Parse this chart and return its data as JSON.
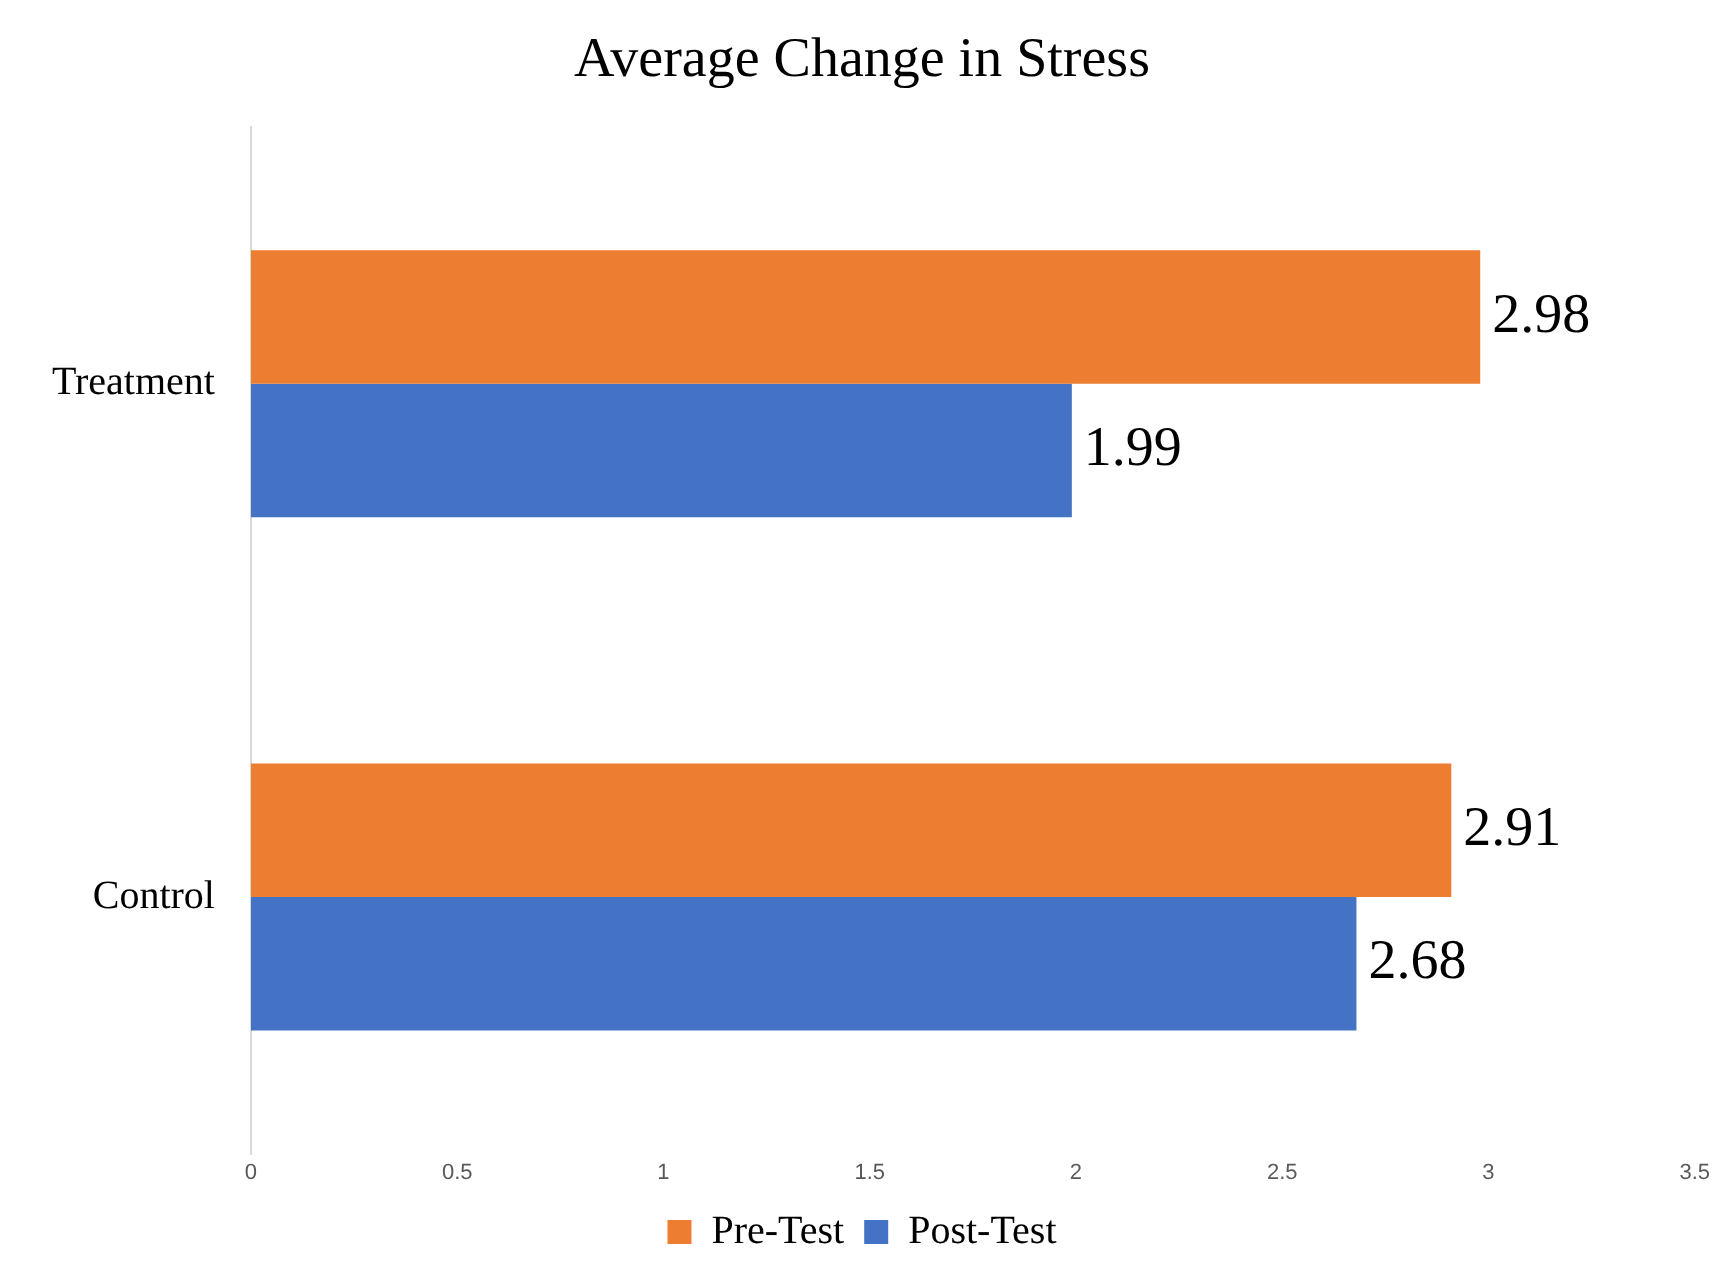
{
  "chart_data": {
    "type": "bar",
    "orientation": "horizontal",
    "title": "Average Change in Stress",
    "categories": [
      "Treatment",
      "Control"
    ],
    "series": [
      {
        "name": "Pre-Test",
        "color": "#ed7d31",
        "values": [
          2.98,
          2.91
        ]
      },
      {
        "name": "Post-Test",
        "color": "#4472c4",
        "values": [
          1.99,
          2.68
        ]
      }
    ],
    "xlim": [
      0,
      3.5
    ],
    "xticks": [
      0,
      0.5,
      1,
      1.5,
      2,
      2.5,
      3,
      3.5
    ],
    "grid": false,
    "legend": "bottom",
    "data_labels": true
  }
}
